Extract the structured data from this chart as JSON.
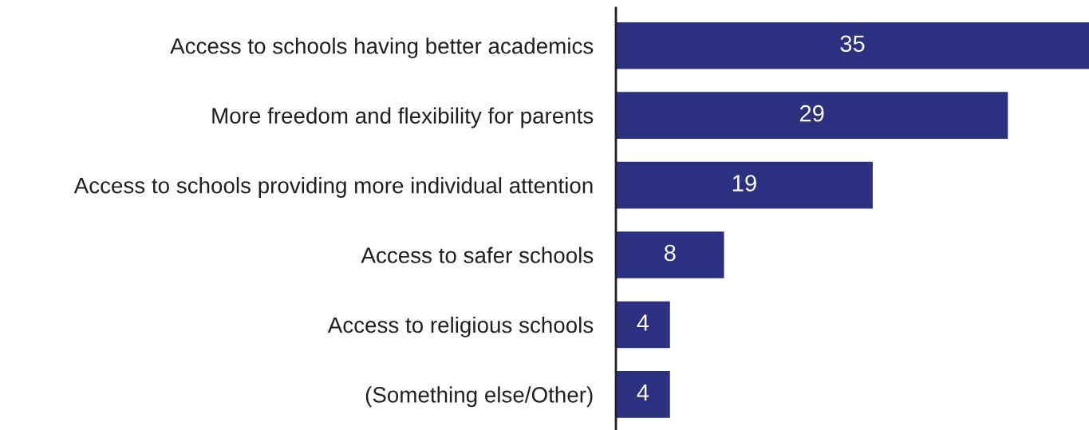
{
  "chart_data": {
    "type": "bar",
    "orientation": "horizontal",
    "categories": [
      "Access to schools having better academics",
      "More freedom and flexibility for parents",
      "Access to schools providing more individual attention",
      "Access to safer schools",
      "Access to religious schools",
      "(Something else/Other)"
    ],
    "values": [
      35,
      29,
      19,
      8,
      4,
      4
    ],
    "color": "#2b3180",
    "data_labels": true,
    "xlim": [
      0,
      35
    ],
    "tick_labels": "y"
  }
}
